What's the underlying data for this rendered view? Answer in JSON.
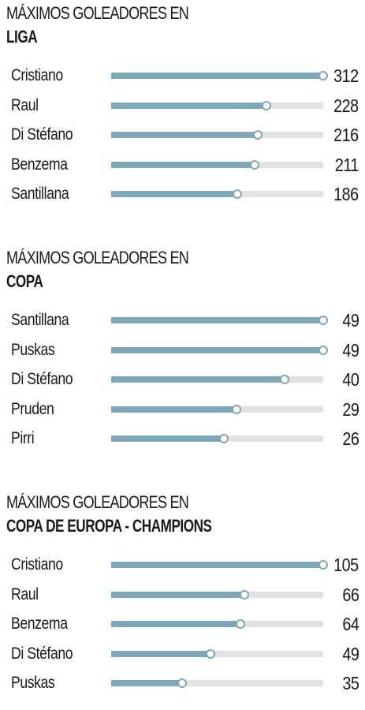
{
  "chart_data": [
    {
      "type": "bar",
      "orientation": "horizontal",
      "title_line1": "MÁXIMOS GOLEADORES EN",
      "title_line2": "LIGA",
      "categories": [
        "Cristiano",
        "Raul",
        "Di Stéfano",
        "Benzema",
        "Santillana"
      ],
      "values": [
        312,
        228,
        216,
        211,
        186
      ],
      "value_labels": [
        "312",
        "228",
        "216",
        "211",
        "186"
      ],
      "xlim": [
        0,
        312
      ]
    },
    {
      "type": "bar",
      "orientation": "horizontal",
      "title_line1": "MÁXIMOS GOLEADORES EN",
      "title_line2": "COPA",
      "categories": [
        "Santillana",
        "Puskas",
        "Di Stéfano",
        "Pruden",
        "Pirri"
      ],
      "values": [
        49,
        49,
        40,
        29,
        26
      ],
      "value_labels": [
        "49",
        "49",
        "40",
        "29",
        "26"
      ],
      "xlim": [
        0,
        49
      ]
    },
    {
      "type": "bar",
      "orientation": "horizontal",
      "title_line1": "MÁXIMOS GOLEADORES EN",
      "title_line2": "COPA DE EUROPA - CHAMPIONS",
      "categories": [
        "Cristiano",
        "Raul",
        "Benzema",
        "Di Stéfano",
        "Puskas"
      ],
      "values": [
        105,
        66,
        64,
        49,
        35
      ],
      "value_labels": [
        "105",
        "66",
        "64",
        "49",
        "35"
      ],
      "xlim": [
        0,
        105
      ]
    }
  ],
  "colors": {
    "bar_fill": "#7ea7b7",
    "bar_track": "#e2e2e2",
    "dot_fill": "#ffffff",
    "text": "#1a1a1a",
    "background": "#ffffff"
  }
}
